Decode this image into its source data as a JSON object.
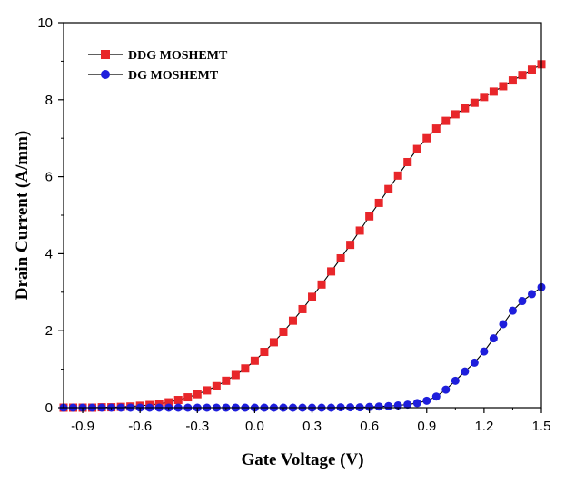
{
  "chart_data": {
    "type": "line",
    "title": "",
    "xlabel": "Gate Voltage (V)",
    "ylabel": "Drain Current (A/mm)",
    "xlim": [
      -1.0,
      1.5
    ],
    "ylim": [
      0,
      10
    ],
    "x_ticks": [
      -0.9,
      -0.6,
      -0.3,
      0.0,
      0.3,
      0.6,
      0.9,
      1.2,
      1.5
    ],
    "x_tick_labels": [
      "-0.9",
      "-0.6",
      "-0.3",
      "0.0",
      "0.3",
      "0.6",
      "0.9",
      "1.2",
      "1.5"
    ],
    "y_ticks": [
      0,
      2,
      4,
      6,
      8,
      10
    ],
    "y_tick_labels": [
      "0",
      "2",
      "4",
      "6",
      "8",
      "10"
    ],
    "grid": false,
    "legend_position": "top-left",
    "series": [
      {
        "name": "DDG MOSHEMT",
        "color": "#e8262a",
        "marker": "square",
        "x": [
          -1.0,
          -0.95,
          -0.9,
          -0.85,
          -0.8,
          -0.75,
          -0.7,
          -0.65,
          -0.6,
          -0.55,
          -0.5,
          -0.45,
          -0.4,
          -0.35,
          -0.3,
          -0.25,
          -0.2,
          -0.15,
          -0.1,
          -0.05,
          0.0,
          0.05,
          0.1,
          0.15,
          0.2,
          0.25,
          0.3,
          0.35,
          0.4,
          0.45,
          0.5,
          0.55,
          0.6,
          0.65,
          0.7,
          0.75,
          0.8,
          0.85,
          0.9,
          0.95,
          1.0,
          1.05,
          1.1,
          1.15,
          1.2,
          1.25,
          1.3,
          1.35,
          1.4,
          1.45,
          1.5
        ],
        "values": [
          0.0,
          0.0,
          0.0,
          0.0,
          0.01,
          0.01,
          0.02,
          0.03,
          0.05,
          0.07,
          0.1,
          0.14,
          0.2,
          0.27,
          0.35,
          0.45,
          0.56,
          0.7,
          0.85,
          1.02,
          1.22,
          1.45,
          1.7,
          1.97,
          2.26,
          2.56,
          2.88,
          3.2,
          3.54,
          3.88,
          4.23,
          4.6,
          4.97,
          5.32,
          5.68,
          6.03,
          6.38,
          6.72,
          7.0,
          7.25,
          7.45,
          7.62,
          7.78,
          7.92,
          8.07,
          8.21,
          8.35,
          8.5,
          8.64,
          8.78,
          8.92
        ]
      },
      {
        "name": "DG MOSHEMT",
        "color": "#1e1edc",
        "marker": "circle",
        "x": [
          -1.0,
          -0.95,
          -0.9,
          -0.85,
          -0.8,
          -0.75,
          -0.7,
          -0.65,
          -0.6,
          -0.55,
          -0.5,
          -0.45,
          -0.4,
          -0.35,
          -0.3,
          -0.25,
          -0.2,
          -0.15,
          -0.1,
          -0.05,
          0.0,
          0.05,
          0.1,
          0.15,
          0.2,
          0.25,
          0.3,
          0.35,
          0.4,
          0.45,
          0.5,
          0.55,
          0.6,
          0.65,
          0.7,
          0.75,
          0.8,
          0.85,
          0.9,
          0.95,
          1.0,
          1.05,
          1.1,
          1.15,
          1.2,
          1.25,
          1.3,
          1.35,
          1.4,
          1.45,
          1.5
        ],
        "values": [
          0.0,
          0.0,
          0.0,
          0.0,
          0.0,
          0.0,
          0.0,
          0.0,
          0.0,
          0.0,
          0.0,
          0.0,
          0.0,
          0.0,
          0.0,
          0.0,
          0.0,
          0.0,
          0.0,
          0.0,
          0.0,
          0.0,
          0.0,
          0.0,
          0.0,
          0.0,
          0.0,
          0.0,
          0.0,
          0.01,
          0.01,
          0.01,
          0.02,
          0.03,
          0.04,
          0.06,
          0.08,
          0.12,
          0.18,
          0.29,
          0.47,
          0.7,
          0.94,
          1.17,
          1.46,
          1.8,
          2.17,
          2.52,
          2.77,
          2.95,
          3.13
        ]
      }
    ]
  }
}
